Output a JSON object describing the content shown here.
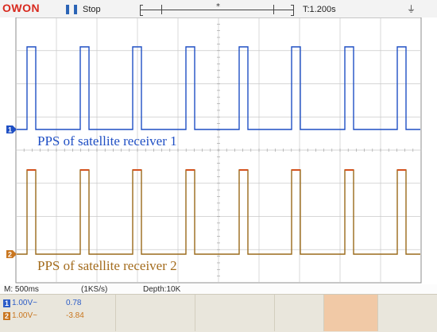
{
  "header": {
    "brand": "OWON",
    "run_icon": "pause-icon",
    "state": "Stop",
    "trigger_position_marker": "*",
    "time_offset": "T:1.200s",
    "usb_icon": "usb-icon"
  },
  "traces": [
    {
      "label": "PPS of satellite receiver 1",
      "marker": "1",
      "color": "#1f4fc4"
    },
    {
      "label": "PPS of satellite receiver 2",
      "marker": "2",
      "color": "#a36b1c"
    }
  ],
  "status_bar": {
    "timebase": "M: 500ms",
    "sample_rate": "(1KS/s)",
    "depth": "Depth:10K"
  },
  "channels": [
    {
      "number": "1",
      "scale": "1.00V~",
      "offset": "0.78",
      "color": "#2c5cc7"
    },
    {
      "number": "2",
      "scale": "1.00V~",
      "offset": "-3.84",
      "color": "#c9761f"
    }
  ],
  "colors": {
    "grid": "#c9c9c9",
    "grid_center": "#999999",
    "ch1": "#1f4fc4",
    "ch2": "#9a6a1a",
    "ch2_peak": "#d4531f",
    "brand": "#d8291e"
  }
}
